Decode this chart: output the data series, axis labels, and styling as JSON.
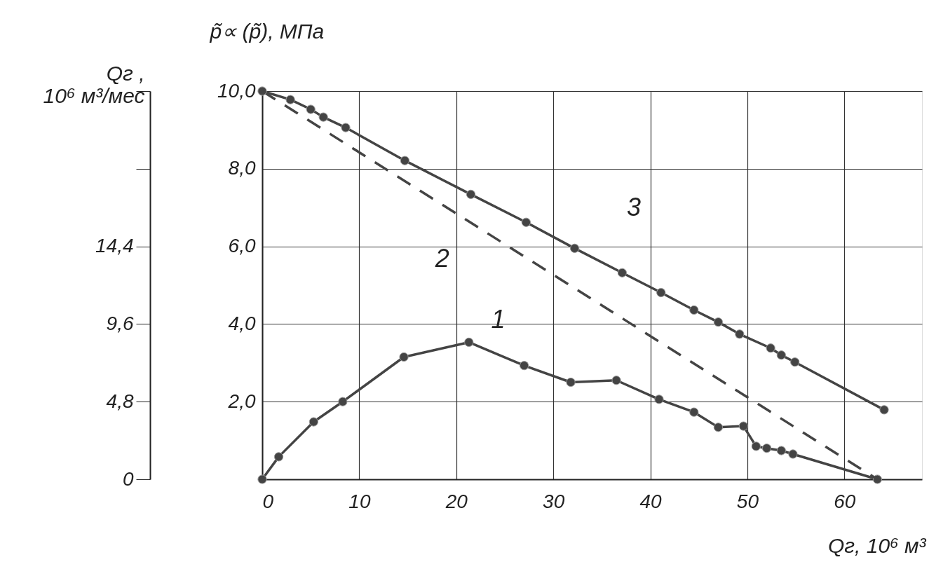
{
  "chart_data": {
    "type": "line",
    "xlabel": "Qг, 10⁶ м³",
    "ylabel": "p̃∝ (p̃), МПа",
    "y2label": "Qг ,\n10⁶ м³/мес",
    "xlim": [
      0,
      68
    ],
    "xticks": [
      0,
      10,
      20,
      30,
      40,
      50,
      60
    ],
    "ylim": [
      0,
      10
    ],
    "yticks": [
      {
        "value": 2,
        "label": "2,0"
      },
      {
        "value": 4,
        "label": "4,0"
      },
      {
        "value": 6,
        "label": "6,0"
      },
      {
        "value": 8,
        "label": "8,0"
      },
      {
        "value": 10,
        "label": "10,0"
      }
    ],
    "y2lim": [
      0,
      24
    ],
    "y2ticks": [
      0,
      {
        "value": 4.8,
        "label": "4,8"
      },
      {
        "value": 9.6,
        "label": "9,6"
      },
      {
        "value": 14.4,
        "label": "14,4"
      },
      {
        "value": 19.2,
        "label": null
      },
      {
        "value": 24,
        "label": null
      }
    ],
    "grid": true,
    "series": [
      {
        "name": "1",
        "color": "#444444",
        "marker": "circle",
        "line_style": "solid",
        "x": [
          0,
          1.7,
          5.3,
          8.3,
          14.6,
          21.3,
          27.0,
          31.8,
          36.5,
          40.9,
          44.5,
          47.0,
          49.6,
          50.9,
          52.0,
          53.5,
          54.7,
          63.4
        ],
        "values": [
          0,
          0.58,
          1.48,
          2.0,
          3.15,
          3.53,
          2.93,
          2.5,
          2.55,
          2.06,
          1.73,
          1.34,
          1.37,
          0.85,
          0.8,
          0.74,
          0.65,
          0
        ]
      },
      {
        "name": "2",
        "color": "#444444",
        "line_style": "dashed",
        "x": [
          0,
          63.4
        ],
        "values": [
          10,
          0
        ]
      },
      {
        "name": "3",
        "color": "#444444",
        "marker": "circle",
        "line_style": "solid",
        "x": [
          0,
          2.9,
          5.0,
          6.3,
          8.6,
          14.7,
          21.5,
          27.2,
          32.2,
          37.1,
          41.1,
          44.5,
          47.0,
          49.2,
          52.4,
          53.5,
          54.9,
          64.1
        ],
        "values": [
          10,
          9.78,
          9.53,
          9.33,
          9.06,
          8.21,
          7.34,
          6.62,
          5.95,
          5.32,
          4.81,
          4.36,
          4.05,
          3.74,
          3.38,
          3.2,
          3.02,
          1.79
        ]
      }
    ]
  }
}
